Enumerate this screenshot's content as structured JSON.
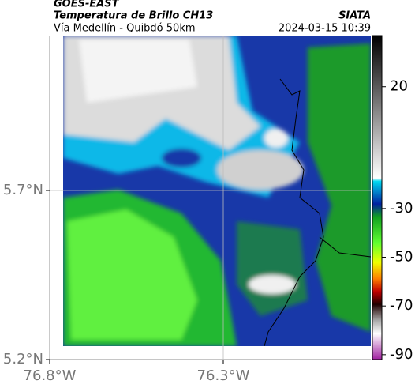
{
  "header": {
    "source": "GOES-EAST",
    "title": "Temperatura de Brillo CH13",
    "organization": "SIATA",
    "subtitle": "Vía Medellín - Quibdó 50km",
    "timestamp": "2024-03-15 10:39"
  },
  "chart_data": {
    "type": "map",
    "xlim": [
      -76.8,
      -75.875
    ],
    "xticks": [
      {
        "value": -76.8,
        "label": "76.8°W"
      },
      {
        "value": -76.3,
        "label": "76.3°W"
      }
    ],
    "ylim": [
      5.2,
      6.158
    ],
    "yticks": [
      {
        "value": 5.2,
        "label": "5.2°N"
      },
      {
        "value": 5.7,
        "label": "5.7°N"
      }
    ],
    "grid": true,
    "colorbar": {
      "lim": [
        41,
        -92
      ],
      "ticks": [
        20,
        -30,
        -50,
        -70,
        -90
      ]
    }
  }
}
